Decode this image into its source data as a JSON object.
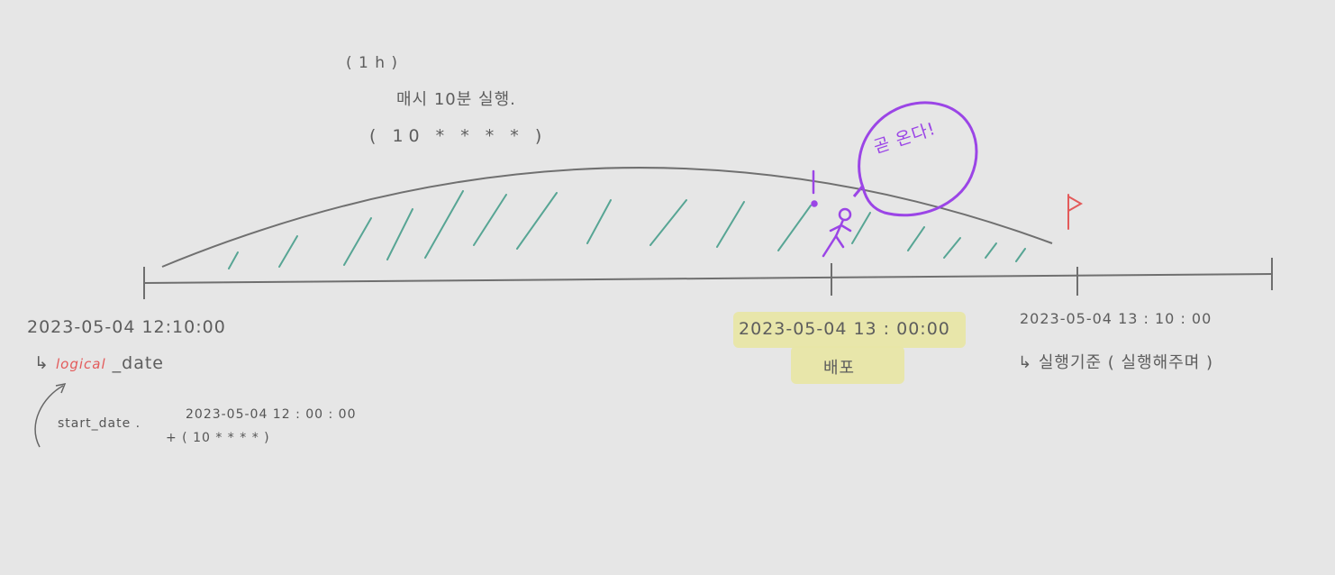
{
  "schedule": {
    "interval": "( 1 h )",
    "description": "매시 10분 실행.",
    "cron": "( 10 * * * * )"
  },
  "callout": {
    "text": "곧 온다!",
    "color": "#9b45e6"
  },
  "timeline": {
    "logical_date_time": "2023-05-04   12:10:00",
    "logical_date_arrow": "↳",
    "logical_date_prefix": "logical",
    "logical_date_suffix": " _date",
    "start_date_label": "start_date .",
    "start_date_value": "2023-05-04   12 : 00 : 00",
    "start_date_cron": "+  ( 10  *  *  *  * )",
    "deploy_time": "2023-05-04   13 : 00:00",
    "deploy_label": "배포",
    "run_time": "2023-05-04   13 : 10 : 00",
    "run_arrow": "↳",
    "run_label": "실행기준 ( 실행해주며 )"
  },
  "colors": {
    "line": "#6f6f6f",
    "hatch": "#3f9a86",
    "flag": "#e35a5a",
    "highlight": "#e8e6a6",
    "accent_red": "#e35a5a",
    "accent_purple": "#9b45e6"
  },
  "icons": [
    "exclamation-icon",
    "running-person-icon",
    "flag-icon"
  ]
}
